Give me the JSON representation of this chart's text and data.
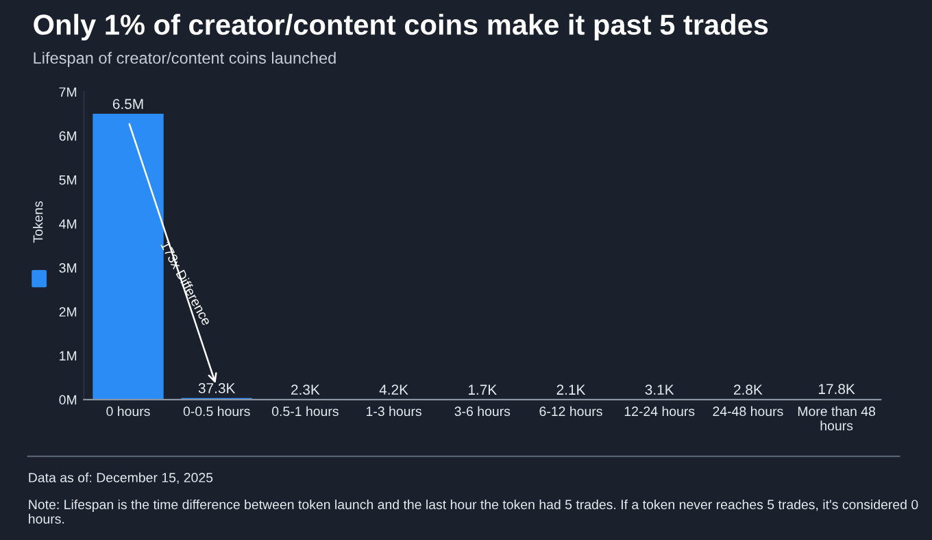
{
  "chart_data": {
    "type": "bar",
    "title": "Only 1% of creator/content coins make it past 5 trades",
    "subtitle": "Lifespan of creator/content coins launched",
    "ylabel": null,
    "categories": [
      "0 hours",
      "0-0.5 hours",
      "0.5-1 hours",
      "1-3 hours",
      "3-6 hours",
      "6-12 hours",
      "12-24 hours",
      "24-48 hours",
      "More than 48 hours"
    ],
    "series": [
      {
        "name": "Tokens",
        "color": "#2b8cf5",
        "values": [
          6500000,
          37300,
          2300,
          4200,
          1700,
          2100,
          3100,
          2800,
          17800
        ],
        "value_labels": [
          "6.5M",
          "37.3K",
          "2.3K",
          "4.2K",
          "1.7K",
          "2.1K",
          "3.1K",
          "2.8K",
          "17.8K"
        ]
      }
    ],
    "ylim": [
      0,
      7000000
    ],
    "yticks": [
      {
        "value": 0,
        "label": "0M"
      },
      {
        "value": 1000000,
        "label": "1M"
      },
      {
        "value": 2000000,
        "label": "2M"
      },
      {
        "value": 3000000,
        "label": "3M"
      },
      {
        "value": 4000000,
        "label": "4M"
      },
      {
        "value": 5000000,
        "label": "5M"
      },
      {
        "value": 6000000,
        "label": "6M"
      },
      {
        "value": 7000000,
        "label": "7M"
      }
    ],
    "grid": false,
    "legend": "left",
    "annotations": [
      "173x Difference",
      "Data as of: December 15, 2025",
      "Note: Lifespan is the time difference between token launch and the last hour the token had 5 trades. If a token never reaches 5 trades, it's considered 0 hours."
    ]
  }
}
